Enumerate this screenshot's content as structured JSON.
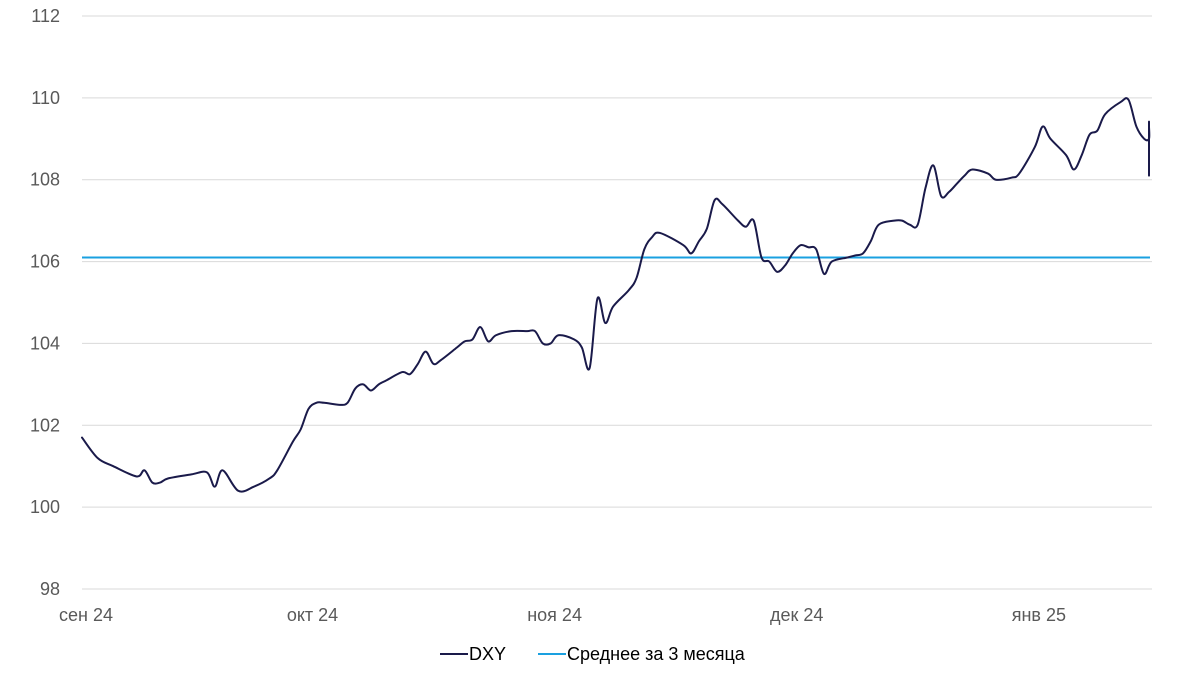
{
  "chart_data": {
    "type": "line",
    "grid": true,
    "legend_position": "bottom",
    "ylim": [
      98,
      112
    ],
    "yticks": [
      98,
      100,
      102,
      104,
      106,
      108,
      110,
      112
    ],
    "xlim": [
      "2024-09-02",
      "2025-01-17"
    ],
    "xticks": [
      {
        "date": "2024-09-02",
        "label": "сен 24"
      },
      {
        "date": "2024-10-01",
        "label": "окт 24"
      },
      {
        "date": "2024-11-01",
        "label": "ноя 24"
      },
      {
        "date": "2024-12-02",
        "label": "дек 24"
      },
      {
        "date": "2025-01-02",
        "label": "янв 25"
      }
    ],
    "series": [
      {
        "name": "DXY",
        "color": "#1a1a4a",
        "points": [
          [
            "2024-09-02",
            101.7
          ],
          [
            "2024-09-04",
            101.2
          ],
          [
            "2024-09-06",
            101.0
          ],
          [
            "2024-09-09",
            100.75
          ],
          [
            "2024-09-10",
            100.9
          ],
          [
            "2024-09-11",
            100.6
          ],
          [
            "2024-09-12",
            100.6
          ],
          [
            "2024-09-13",
            100.7
          ],
          [
            "2024-09-16",
            100.8
          ],
          [
            "2024-09-18",
            100.85
          ],
          [
            "2024-09-19",
            100.5
          ],
          [
            "2024-09-20",
            100.9
          ],
          [
            "2024-09-22",
            100.4
          ],
          [
            "2024-09-24",
            100.5
          ],
          [
            "2024-09-26",
            100.7
          ],
          [
            "2024-09-27",
            100.9
          ],
          [
            "2024-09-29",
            101.6
          ],
          [
            "2024-09-30",
            101.9
          ],
          [
            "2024-10-01",
            102.4
          ],
          [
            "2024-10-02",
            102.55
          ],
          [
            "2024-10-03",
            102.55
          ],
          [
            "2024-10-05",
            102.5
          ],
          [
            "2024-10-06",
            102.55
          ],
          [
            "2024-10-07",
            102.9
          ],
          [
            "2024-10-08",
            103.0
          ],
          [
            "2024-10-09",
            102.85
          ],
          [
            "2024-10-10",
            103.0
          ],
          [
            "2024-10-11",
            103.1
          ],
          [
            "2024-10-13",
            103.3
          ],
          [
            "2024-10-14",
            103.25
          ],
          [
            "2024-10-15",
            103.5
          ],
          [
            "2024-10-16",
            103.8
          ],
          [
            "2024-10-17",
            103.5
          ],
          [
            "2024-10-18",
            103.6
          ],
          [
            "2024-10-20",
            103.9
          ],
          [
            "2024-10-21",
            104.05
          ],
          [
            "2024-10-22",
            104.1
          ],
          [
            "2024-10-23",
            104.4
          ],
          [
            "2024-10-24",
            104.05
          ],
          [
            "2024-10-25",
            104.2
          ],
          [
            "2024-10-27",
            104.3
          ],
          [
            "2024-10-29",
            104.3
          ],
          [
            "2024-10-30",
            104.3
          ],
          [
            "2024-10-31",
            104.0
          ],
          [
            "2024-11-01",
            104.0
          ],
          [
            "2024-11-02",
            104.2
          ],
          [
            "2024-11-04",
            104.1
          ],
          [
            "2024-11-05",
            103.9
          ],
          [
            "2024-11-06",
            103.4
          ],
          [
            "2024-11-07",
            105.1
          ],
          [
            "2024-11-08",
            104.5
          ],
          [
            "2024-11-09",
            104.9
          ],
          [
            "2024-11-11",
            105.3
          ],
          [
            "2024-11-12",
            105.6
          ],
          [
            "2024-11-13",
            106.3
          ],
          [
            "2024-11-14",
            106.6
          ],
          [
            "2024-11-15",
            106.7
          ],
          [
            "2024-11-18",
            106.4
          ],
          [
            "2024-11-19",
            106.2
          ],
          [
            "2024-11-20",
            106.5
          ],
          [
            "2024-11-21",
            106.8
          ],
          [
            "2024-11-22",
            107.5
          ],
          [
            "2024-11-23",
            107.4
          ],
          [
            "2024-11-25",
            107.0
          ],
          [
            "2024-11-26",
            106.85
          ],
          [
            "2024-11-27",
            107.0
          ],
          [
            "2024-11-28",
            106.1
          ],
          [
            "2024-11-29",
            106.0
          ],
          [
            "2024-11-30",
            105.75
          ],
          [
            "2024-12-01",
            105.9
          ],
          [
            "2024-12-02",
            106.2
          ],
          [
            "2024-12-03",
            106.4
          ],
          [
            "2024-12-04",
            106.35
          ],
          [
            "2024-12-05",
            106.3
          ],
          [
            "2024-12-06",
            105.7
          ],
          [
            "2024-12-07",
            106.0
          ],
          [
            "2024-12-09",
            106.1
          ],
          [
            "2024-12-10",
            106.15
          ],
          [
            "2024-12-11",
            106.2
          ],
          [
            "2024-12-12",
            106.5
          ],
          [
            "2024-12-13",
            106.9
          ],
          [
            "2024-12-15",
            107.0
          ],
          [
            "2024-12-16",
            107.0
          ],
          [
            "2024-12-17",
            106.9
          ],
          [
            "2024-12-18",
            106.9
          ],
          [
            "2024-12-19",
            107.8
          ],
          [
            "2024-12-20",
            108.35
          ],
          [
            "2024-12-21",
            107.6
          ],
          [
            "2024-12-22",
            107.7
          ],
          [
            "2024-12-23",
            107.9
          ],
          [
            "2024-12-24",
            108.1
          ],
          [
            "2024-12-25",
            108.25
          ],
          [
            "2024-12-27",
            108.15
          ],
          [
            "2024-12-28",
            108.0
          ],
          [
            "2024-12-30",
            108.05
          ],
          [
            "2024-12-31",
            108.15
          ],
          [
            "2025-01-02",
            108.8
          ],
          [
            "2025-01-03",
            109.3
          ],
          [
            "2025-01-04",
            109.0
          ],
          [
            "2025-01-06",
            108.6
          ],
          [
            "2025-01-07",
            108.25
          ],
          [
            "2025-01-08",
            108.6
          ],
          [
            "2025-01-09",
            109.1
          ],
          [
            "2025-01-10",
            109.2
          ],
          [
            "2025-01-11",
            109.6
          ],
          [
            "2025-01-13",
            109.9
          ],
          [
            "2025-01-14",
            109.95
          ],
          [
            "2025-01-15",
            109.3
          ],
          [
            "2025-01-16",
            109.0
          ],
          [
            "2025-01-17",
            109.0
          ],
          [
            "2025-01-18",
            109.3
          ],
          [
            "2025-01-19",
            109.4
          ],
          [
            "2025-01-21",
            109.4
          ],
          [
            "2025-01-22",
            109.2
          ],
          [
            "2025-01-23",
            108.1
          ]
        ]
      },
      {
        "name": "Среднее за 3 месяца",
        "color": "#1aa0e0",
        "constant": 106.1
      }
    ]
  }
}
